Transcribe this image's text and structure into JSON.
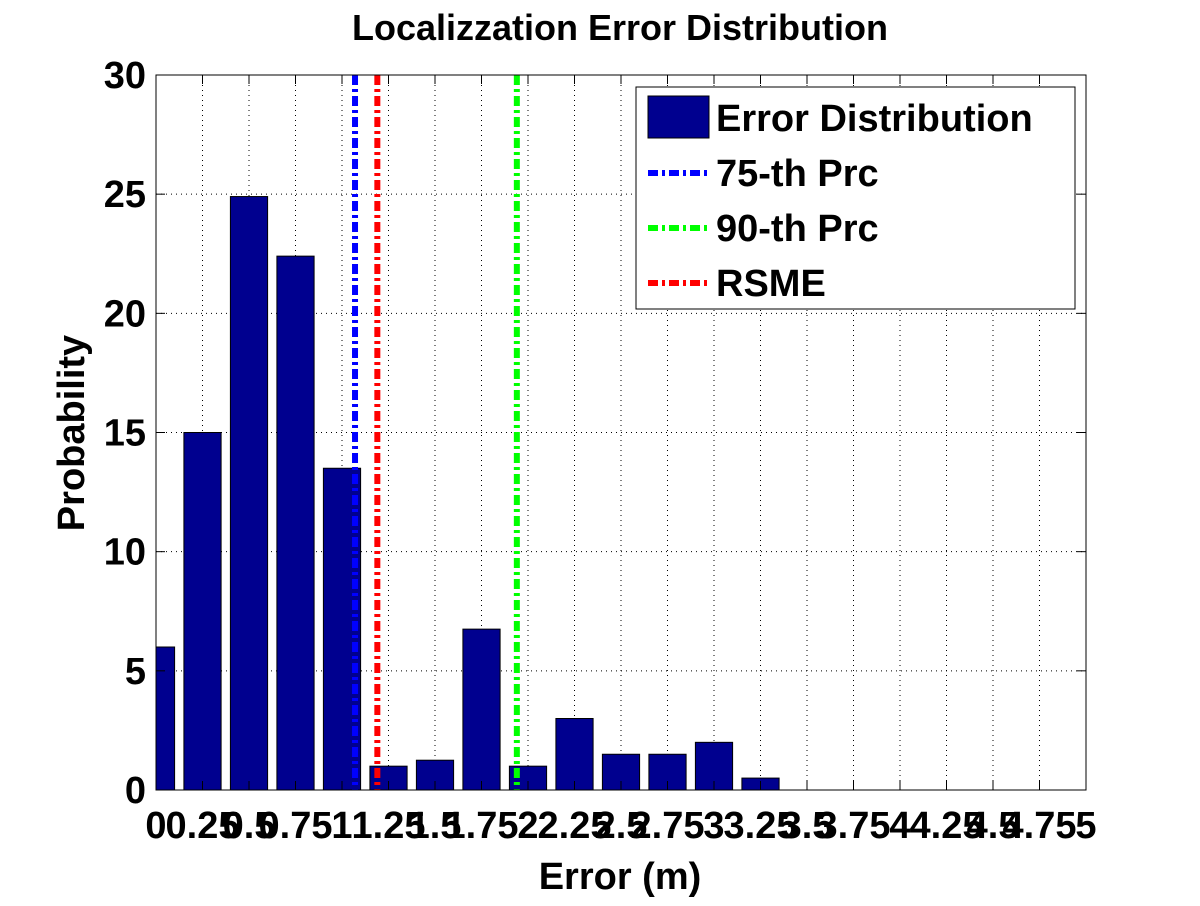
{
  "chart_data": {
    "type": "bar",
    "title": "Localizzation Error Distribution",
    "xlabel": "Error (m)",
    "ylabel": "Probability",
    "xlim": [
      0,
      5
    ],
    "ylim": [
      0,
      30
    ],
    "grid": true,
    "legend_position": "top-right",
    "x_ticks": [
      0,
      0.25,
      0.5,
      0.75,
      1,
      1.25,
      1.5,
      1.75,
      2,
      2.25,
      2.5,
      2.75,
      3,
      3.25,
      3.5,
      3.75,
      4,
      4.25,
      4.5,
      4.75,
      5
    ],
    "x_tick_labels": [
      "0",
      "0.25",
      "0.5",
      "0.75",
      "1",
      "1.25",
      "1.5",
      "1.75",
      "2",
      "2.25",
      "2.5",
      "2.75",
      "3",
      "3.25",
      "3.5",
      "3.75",
      "4",
      "4.25",
      "4.5",
      "4.75",
      "5"
    ],
    "y_ticks": [
      0,
      5,
      10,
      15,
      20,
      25,
      30
    ],
    "y_tick_labels": [
      "0",
      "5",
      "10",
      "15",
      "20",
      "25",
      "30"
    ],
    "bar_width": 0.2,
    "series": [
      {
        "name": "Error Distribution",
        "color": "#00008f",
        "x": [
          0,
          0.25,
          0.5,
          0.75,
          1,
          1.25,
          1.5,
          1.75,
          2,
          2.25,
          2.5,
          2.75,
          3,
          3.25
        ],
        "values": [
          6,
          15,
          24.9,
          22.4,
          13.5,
          1,
          1.25,
          6.75,
          1,
          3,
          1.5,
          1.5,
          2,
          0.5
        ]
      }
    ],
    "reference_lines": [
      {
        "name": "75-th Prc",
        "x": 1.07,
        "color": "#0000ff"
      },
      {
        "name": "90-th Prc",
        "x": 1.94,
        "color": "#00ff00"
      },
      {
        "name": "RSME",
        "x": 1.19,
        "color": "#ff0000"
      }
    ]
  }
}
